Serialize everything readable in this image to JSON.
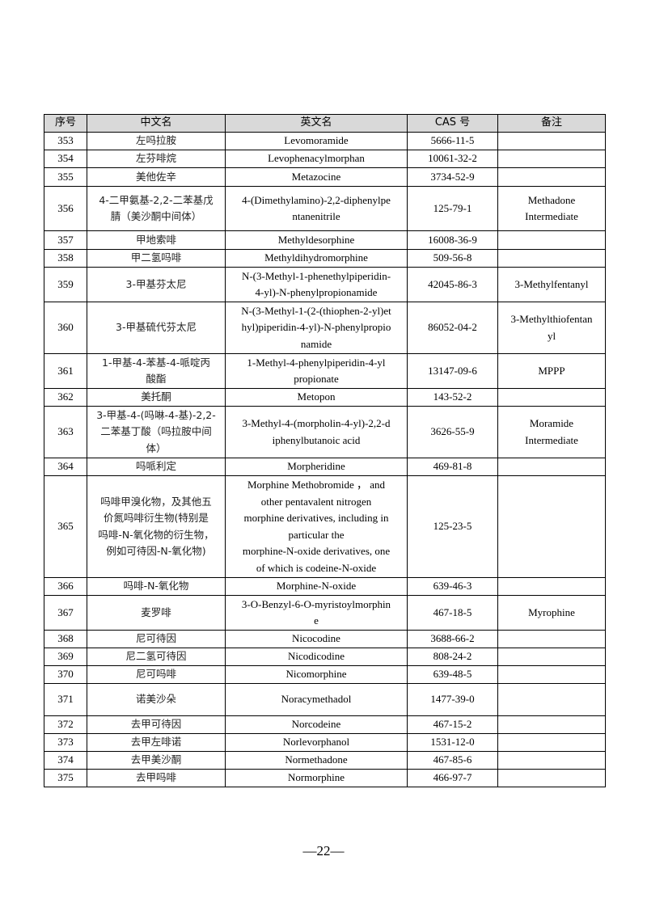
{
  "table": {
    "headers": [
      "序号",
      "中文名",
      "英文名",
      "CAS 号",
      "备注"
    ],
    "rows": [
      {
        "no": "353",
        "cn": "左吗拉胺",
        "en": "Levomoramide",
        "cas": "5666-11-5",
        "note": ""
      },
      {
        "no": "354",
        "cn": "左芬啡烷",
        "en": "Levophenacylmorphan",
        "cas": "10061-32-2",
        "note": ""
      },
      {
        "no": "355",
        "cn": "美他佐辛",
        "en": "Metazocine",
        "cas": "3734-52-9",
        "note": ""
      },
      {
        "no": "356",
        "cn": "4-二甲氨基-2,2-二苯基戊\n腈（美沙酮中间体）",
        "en": "4-(Dimethylamino)-2,2-diphenylpe\nntanenitrile",
        "cas": "125-79-1",
        "note": "Methadone\nIntermediate"
      },
      {
        "no": "357",
        "cn": "甲地索啡",
        "en": "Methyldesorphine",
        "cas": "16008-36-9",
        "note": ""
      },
      {
        "no": "358",
        "cn": "甲二氢吗啡",
        "en": "Methyldihydromorphine",
        "cas": "509-56-8",
        "note": ""
      },
      {
        "no": "359",
        "cn": "3-甲基芬太尼",
        "en": "N-(3-Methyl-1-phenethylpiperidin-\n4-yl)-N-phenylpropionamide",
        "cas": "42045-86-3",
        "note": "3-Methylfentanyl"
      },
      {
        "no": "360",
        "cn": "3-甲基硫代芬太尼",
        "en": "N-(3-Methyl-1-(2-(thiophen-2-yl)et\nhyl)piperidin-4-yl)-N-phenylpropio\nnamide",
        "cas": "86052-04-2",
        "note": "3-Methylthiofentan\nyl"
      },
      {
        "no": "361",
        "cn": "1-甲基-4-苯基-4-哌啶丙\n酸酯",
        "en": "1-Methyl-4-phenylpiperidin-4-yl\npropionate",
        "cas": "13147-09-6",
        "note": "MPPP"
      },
      {
        "no": "362",
        "cn": "美托酮",
        "en": "Metopon",
        "cas": "143-52-2",
        "note": ""
      },
      {
        "no": "363",
        "cn": "3-甲基-4-(吗啉-4-基)-2,2-\n二苯基丁酸（吗拉胺中间\n体）",
        "en": "3-Methyl-4-(morpholin-4-yl)-2,2-d\niphenylbutanoic acid",
        "cas": "3626-55-9",
        "note": "Moramide\nIntermediate"
      },
      {
        "no": "364",
        "cn": "吗哌利定",
        "en": "Morpheridine",
        "cas": "469-81-8",
        "note": ""
      },
      {
        "no": "365",
        "cn": "吗啡甲溴化物，及其他五\n价氮吗啡衍生物(特别是\n吗啡-N-氧化物的衍生物，\n例如可待因-N-氧化物)",
        "en": "Morphine Methobromide ， and\nother pentavalent nitrogen\nmorphine derivatives, including in\nparticular the\nmorphine-N-oxide derivatives, one\nof which is codeine-N-oxide",
        "cas": "125-23-5",
        "note": ""
      },
      {
        "no": "366",
        "cn": "吗啡-N-氧化物",
        "en": "Morphine-N-oxide",
        "cas": "639-46-3",
        "note": ""
      },
      {
        "no": "367",
        "cn": "麦罗啡",
        "en": "3-O-Benzyl-6-O-myristoylmorphin\ne",
        "cas": "467-18-5",
        "note": "Myrophine"
      },
      {
        "no": "368",
        "cn": "尼可待因",
        "en": "Nicocodine",
        "cas": "3688-66-2",
        "note": ""
      },
      {
        "no": "369",
        "cn": "尼二氢可待因",
        "en": "Nicodicodine",
        "cas": "808-24-2",
        "note": ""
      },
      {
        "no": "370",
        "cn": "尼可吗啡",
        "en": "Nicomorphine",
        "cas": "639-48-5",
        "note": ""
      },
      {
        "no": "371",
        "cn": "诺美沙朵",
        "en": "Noracymethadol",
        "cas": "1477-39-0",
        "note": ""
      },
      {
        "no": "372",
        "cn": "去甲可待因",
        "en": "Norcodeine",
        "cas": "467-15-2",
        "note": ""
      },
      {
        "no": "373",
        "cn": "去甲左啡诺",
        "en": "Norlevorphanol",
        "cas": "1531-12-0",
        "note": ""
      },
      {
        "no": "374",
        "cn": "去甲美沙酮",
        "en": "Normethadone",
        "cas": "467-85-6",
        "note": ""
      },
      {
        "no": "375",
        "cn": "去甲吗啡",
        "en": "Normorphine",
        "cas": "466-97-7",
        "note": ""
      }
    ]
  },
  "footer": {
    "page_number": "—22—"
  }
}
